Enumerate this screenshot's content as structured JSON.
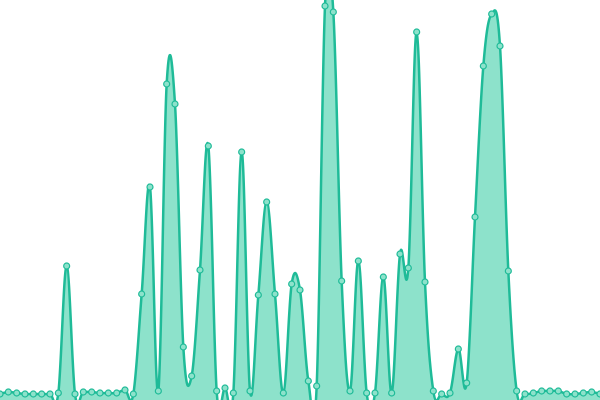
{
  "chart_data": {
    "type": "area",
    "categories": [
      null,
      null,
      null,
      null,
      null,
      null,
      null,
      null,
      null,
      null,
      null,
      null,
      null,
      null,
      null,
      null,
      null,
      null,
      null,
      null,
      null,
      null,
      null,
      null,
      null,
      null,
      null,
      null,
      null,
      null,
      null,
      null,
      null,
      null,
      null,
      null,
      null,
      null,
      null,
      null,
      null,
      null,
      null,
      null,
      null,
      null,
      null,
      null,
      null,
      null,
      null,
      null,
      null,
      null,
      null,
      null,
      null,
      null,
      null,
      null,
      null,
      null,
      null,
      null,
      null,
      null,
      null,
      null,
      null,
      null,
      null,
      null,
      null
    ],
    "series": [
      {
        "color": "#1fbb98",
        "fill": "#8de2cb",
        "values": [
          0,
          2,
          1,
          0,
          0,
          0,
          0,
          1,
          128,
          0,
          2,
          2,
          1,
          1,
          1,
          4,
          0,
          100,
          207,
          3,
          310,
          290,
          47,
          18,
          124,
          248,
          3,
          6,
          1,
          242,
          3,
          99,
          192,
          100,
          1,
          110,
          104,
          13,
          8,
          388,
          382,
          113,
          3,
          133,
          1,
          1,
          117,
          1,
          140,
          126,
          362,
          112,
          3,
          0,
          1,
          45,
          11,
          177,
          328,
          380,
          348,
          123,
          3,
          0,
          1,
          3,
          3,
          3,
          0,
          0,
          1,
          2,
          0
        ]
      }
    ],
    "ylim": [
      -6,
      394
    ]
  }
}
